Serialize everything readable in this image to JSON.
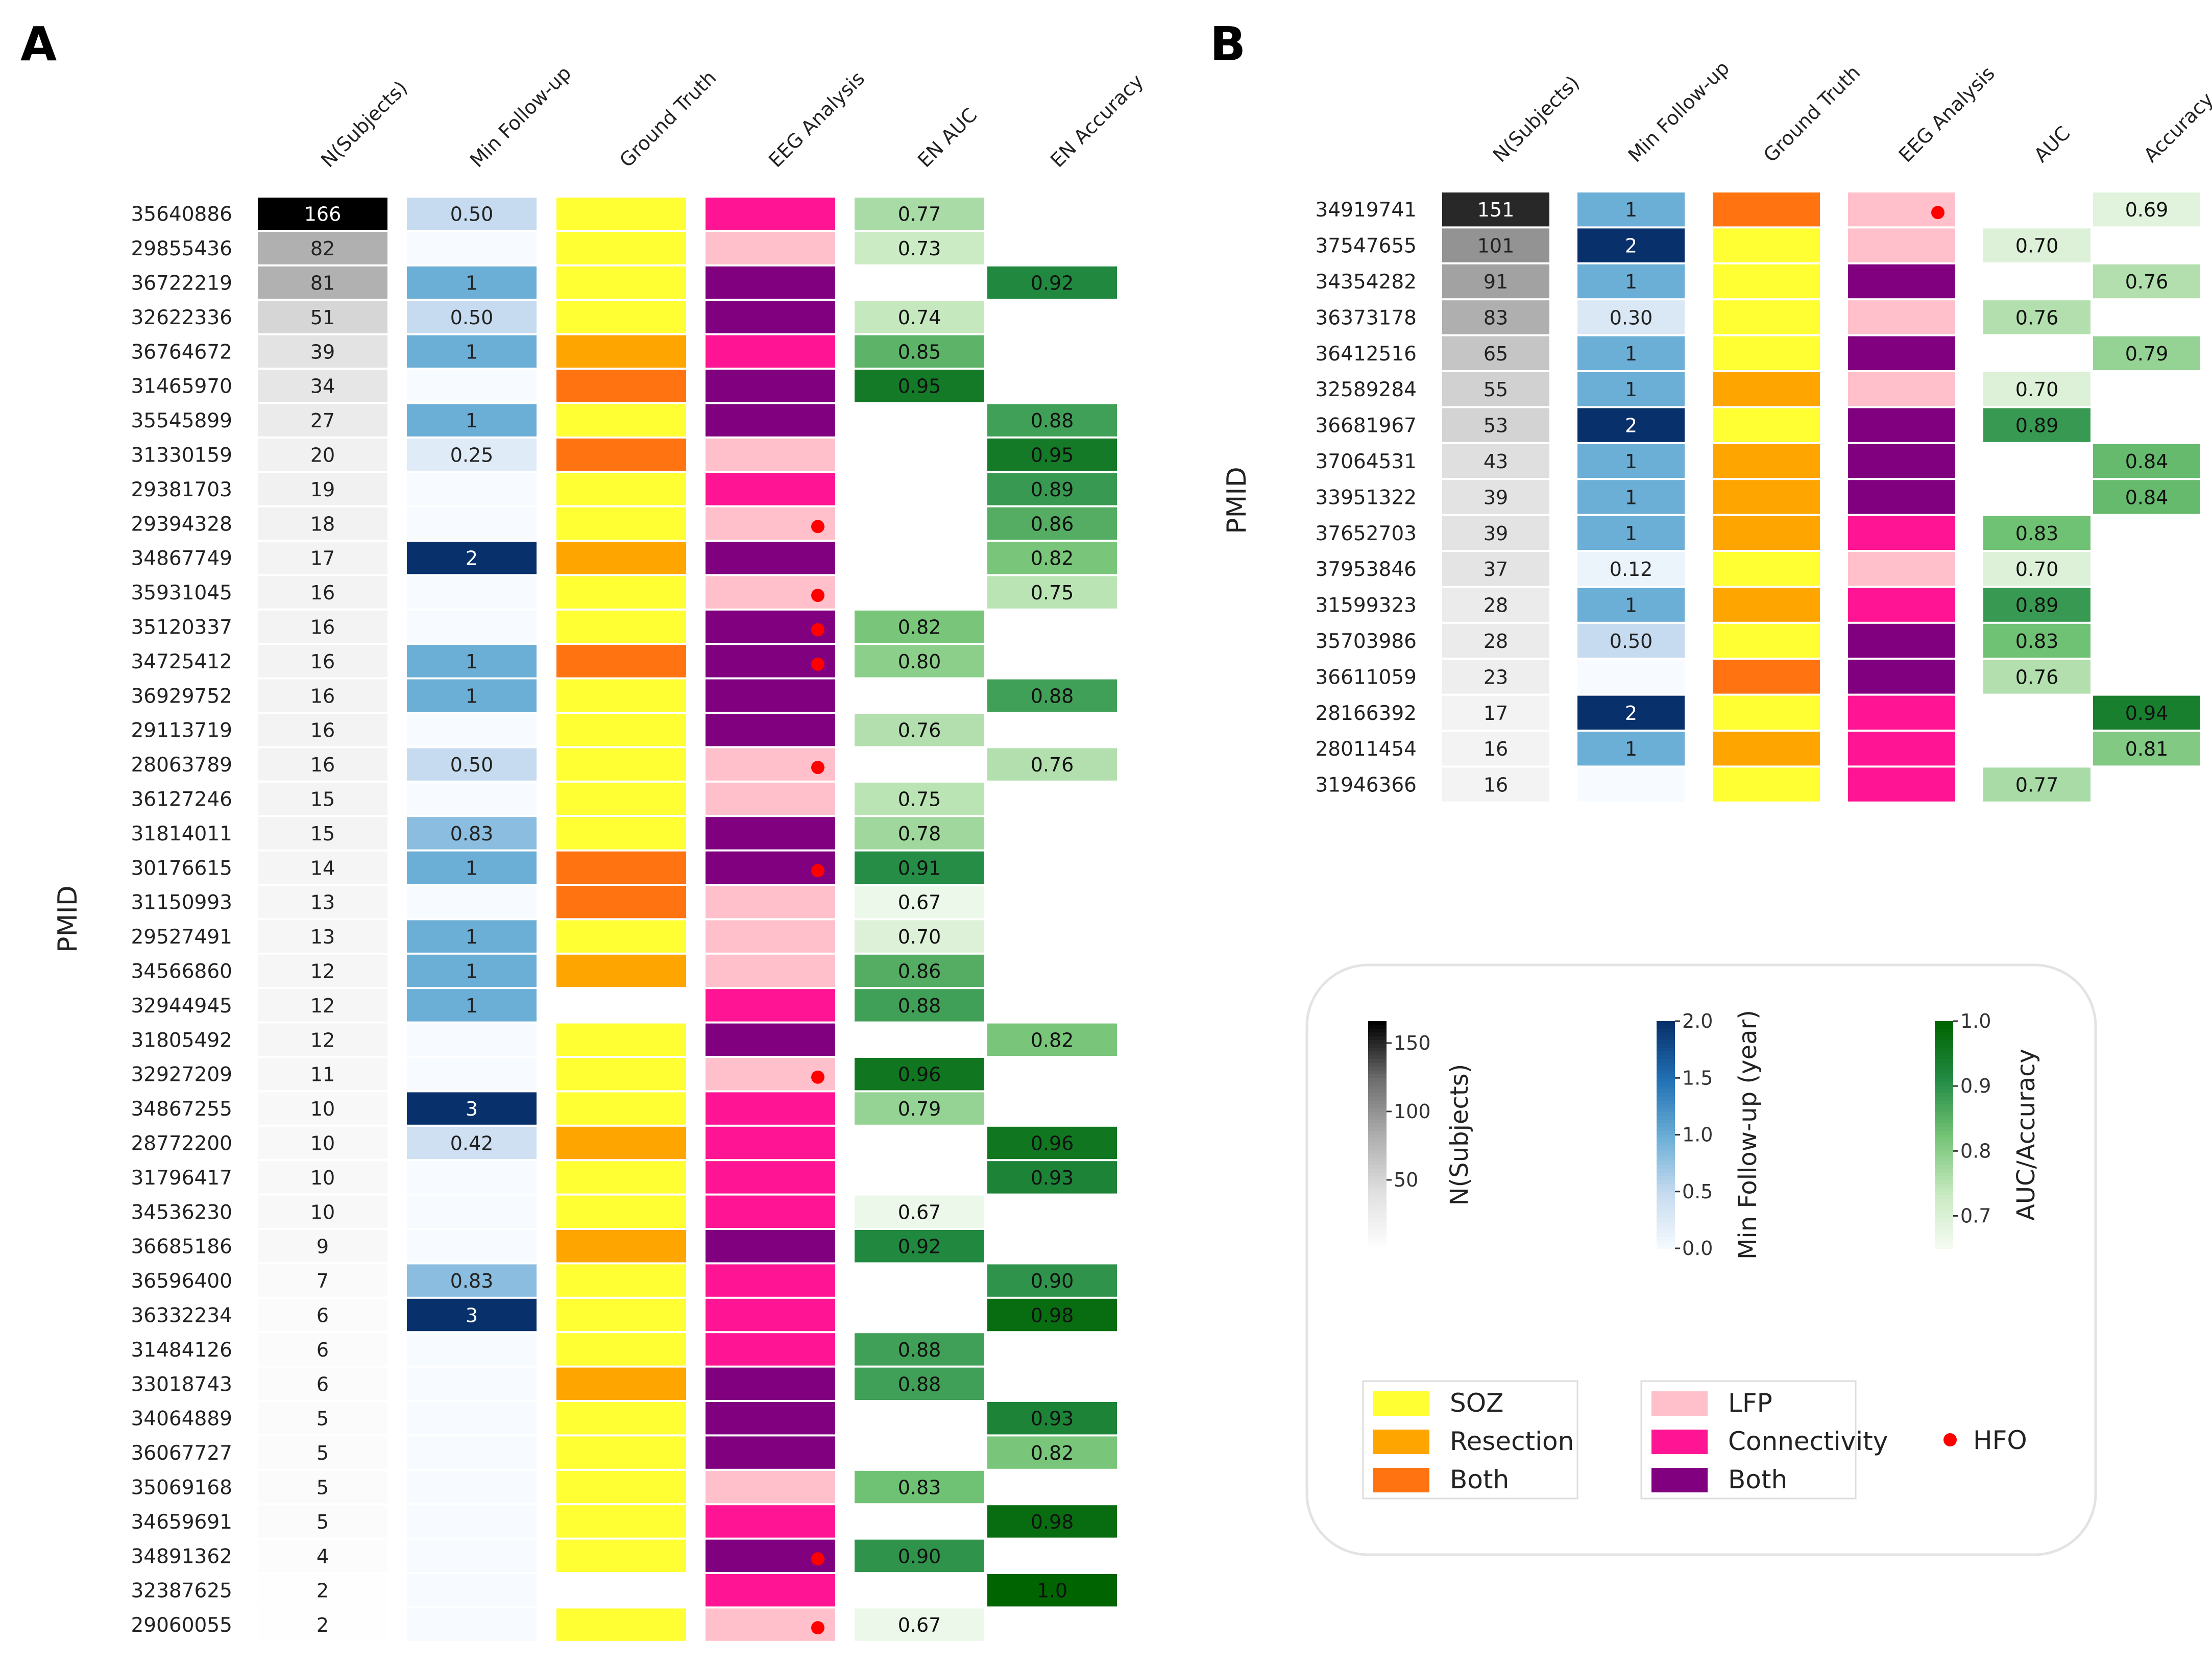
{
  "colors": {
    "soz": "#ffff33",
    "resection": "#ffa500",
    "gt_both": "#ff7410",
    "lfp": "#ffc0cb",
    "connectivity": "#ff1493",
    "eeg_both": "#800080",
    "hfo": "#ff0000"
  },
  "legend": {
    "gt": [
      {
        "key": "S",
        "label": "SOZ"
      },
      {
        "key": "R",
        "label": "Resection"
      },
      {
        "key": "B",
        "label": "Both"
      }
    ],
    "eeg": [
      {
        "key": "L",
        "label": "LFP"
      },
      {
        "key": "C",
        "label": "Connectivity"
      },
      {
        "key": "B",
        "label": "Both"
      }
    ],
    "hfo": "HFO"
  },
  "colorbars": [
    {
      "id": "n",
      "label": "N(Subjects)",
      "min": 0,
      "max": 166,
      "ticks": [
        50,
        100,
        150
      ],
      "tick_labels": [
        "50",
        "100",
        "150"
      ],
      "cmap": "gray"
    },
    {
      "id": "fu",
      "label": "Min Follow-up (year)",
      "min": 0,
      "max": 2.0,
      "ticks": [
        0,
        0.5,
        1.0,
        1.5,
        2.0
      ],
      "tick_labels": [
        "0.0",
        "0.5",
        "1.0",
        "1.5",
        "2.0"
      ],
      "cmap": "blue"
    },
    {
      "id": "auc",
      "label": "AUC/Accuracy",
      "min": 0.65,
      "max": 1.0,
      "ticks": [
        0.7,
        0.8,
        0.9,
        1.0
      ],
      "tick_labels": [
        "0.7",
        "0.8",
        "0.9",
        "1.0"
      ],
      "cmap": "green"
    }
  ],
  "chart_data": [
    {
      "type": "heatmap",
      "panel": "A",
      "ylabel": "PMID",
      "columns": [
        "N(Subjects)",
        "Min Follow-up",
        "Ground Truth",
        "EEG Analysis",
        "EN AUC",
        "EN Accuracy"
      ],
      "rows": [
        {
          "pmid": "35640886",
          "n": 166,
          "fu": 0.5,
          "fu_label": "0.50",
          "gt": "S",
          "eeg": "C",
          "hfo": false,
          "auc": 0.77,
          "auc_label": "0.77",
          "acc": null,
          "acc_label": null
        },
        {
          "pmid": "29855436",
          "n": 82,
          "fu": null,
          "fu_label": null,
          "gt": "S",
          "eeg": "L",
          "hfo": false,
          "auc": 0.73,
          "auc_label": "0.73",
          "acc": null,
          "acc_label": null
        },
        {
          "pmid": "36722219",
          "n": 81,
          "fu": 1,
          "fu_label": "1",
          "gt": "S",
          "eeg": "B",
          "hfo": false,
          "auc": null,
          "auc_label": null,
          "acc": 0.92,
          "acc_label": "0.92"
        },
        {
          "pmid": "32622336",
          "n": 51,
          "fu": 0.5,
          "fu_label": "0.50",
          "gt": "S",
          "eeg": "B",
          "hfo": false,
          "auc": 0.74,
          "auc_label": "0.74",
          "acc": null,
          "acc_label": null
        },
        {
          "pmid": "36764672",
          "n": 39,
          "fu": 1,
          "fu_label": "1",
          "gt": "R",
          "eeg": "C",
          "hfo": false,
          "auc": 0.85,
          "auc_label": "0.85",
          "acc": null,
          "acc_label": null
        },
        {
          "pmid": "31465970",
          "n": 34,
          "fu": null,
          "fu_label": null,
          "gt": "B",
          "eeg": "B",
          "hfo": false,
          "auc": 0.95,
          "auc_label": "0.95",
          "acc": null,
          "acc_label": null
        },
        {
          "pmid": "35545899",
          "n": 27,
          "fu": 1,
          "fu_label": "1",
          "gt": "S",
          "eeg": "B",
          "hfo": false,
          "auc": null,
          "auc_label": null,
          "acc": 0.88,
          "acc_label": "0.88"
        },
        {
          "pmid": "31330159",
          "n": 20,
          "fu": 0.25,
          "fu_label": "0.25",
          "gt": "B",
          "eeg": "L",
          "hfo": false,
          "auc": null,
          "auc_label": null,
          "acc": 0.95,
          "acc_label": "0.95"
        },
        {
          "pmid": "29381703",
          "n": 19,
          "fu": null,
          "fu_label": null,
          "gt": "S",
          "eeg": "C",
          "hfo": false,
          "auc": null,
          "auc_label": null,
          "acc": 0.89,
          "acc_label": "0.89"
        },
        {
          "pmid": "29394328",
          "n": 18,
          "fu": null,
          "fu_label": null,
          "gt": "S",
          "eeg": "L",
          "hfo": true,
          "auc": null,
          "auc_label": null,
          "acc": 0.86,
          "acc_label": "0.86"
        },
        {
          "pmid": "34867749",
          "n": 17,
          "fu": 2,
          "fu_label": "2",
          "gt": "R",
          "eeg": "B",
          "hfo": false,
          "auc": null,
          "auc_label": null,
          "acc": 0.82,
          "acc_label": "0.82"
        },
        {
          "pmid": "35931045",
          "n": 16,
          "fu": null,
          "fu_label": null,
          "gt": "S",
          "eeg": "L",
          "hfo": true,
          "auc": null,
          "auc_label": null,
          "acc": 0.75,
          "acc_label": "0.75"
        },
        {
          "pmid": "35120337",
          "n": 16,
          "fu": null,
          "fu_label": null,
          "gt": "S",
          "eeg": "B",
          "hfo": true,
          "auc": 0.82,
          "auc_label": "0.82",
          "acc": null,
          "acc_label": null
        },
        {
          "pmid": "34725412",
          "n": 16,
          "fu": 1,
          "fu_label": "1",
          "gt": "B",
          "eeg": "B",
          "hfo": true,
          "auc": 0.8,
          "auc_label": "0.80",
          "acc": null,
          "acc_label": null
        },
        {
          "pmid": "36929752",
          "n": 16,
          "fu": 1,
          "fu_label": "1",
          "gt": "S",
          "eeg": "B",
          "hfo": false,
          "auc": null,
          "auc_label": null,
          "acc": 0.88,
          "acc_label": "0.88"
        },
        {
          "pmid": "29113719",
          "n": 16,
          "fu": null,
          "fu_label": null,
          "gt": "S",
          "eeg": "B",
          "hfo": false,
          "auc": 0.76,
          "auc_label": "0.76",
          "acc": null,
          "acc_label": null
        },
        {
          "pmid": "28063789",
          "n": 16,
          "fu": 0.5,
          "fu_label": "0.50",
          "gt": "S",
          "eeg": "L",
          "hfo": true,
          "auc": null,
          "auc_label": null,
          "acc": 0.76,
          "acc_label": "0.76"
        },
        {
          "pmid": "36127246",
          "n": 15,
          "fu": null,
          "fu_label": null,
          "gt": "S",
          "eeg": "L",
          "hfo": false,
          "auc": 0.75,
          "auc_label": "0.75",
          "acc": null,
          "acc_label": null
        },
        {
          "pmid": "31814011",
          "n": 15,
          "fu": 0.83,
          "fu_label": "0.83",
          "gt": "S",
          "eeg": "B",
          "hfo": false,
          "auc": 0.78,
          "auc_label": "0.78",
          "acc": null,
          "acc_label": null
        },
        {
          "pmid": "30176615",
          "n": 14,
          "fu": 1,
          "fu_label": "1",
          "gt": "B",
          "eeg": "B",
          "hfo": true,
          "auc": 0.91,
          "auc_label": "0.91",
          "acc": null,
          "acc_label": null
        },
        {
          "pmid": "31150993",
          "n": 13,
          "fu": null,
          "fu_label": null,
          "gt": "B",
          "eeg": "L",
          "hfo": false,
          "auc": 0.67,
          "auc_label": "0.67",
          "acc": null,
          "acc_label": null
        },
        {
          "pmid": "29527491",
          "n": 13,
          "fu": 1,
          "fu_label": "1",
          "gt": "S",
          "eeg": "L",
          "hfo": false,
          "auc": 0.7,
          "auc_label": "0.70",
          "acc": null,
          "acc_label": null
        },
        {
          "pmid": "34566860",
          "n": 12,
          "fu": 1,
          "fu_label": "1",
          "gt": "R",
          "eeg": "L",
          "hfo": false,
          "auc": 0.86,
          "auc_label": "0.86",
          "acc": null,
          "acc_label": null
        },
        {
          "pmid": "32944945",
          "n": 12,
          "fu": 1,
          "fu_label": "1",
          "gt": null,
          "eeg": "C",
          "hfo": false,
          "auc": 0.88,
          "auc_label": "0.88",
          "acc": null,
          "acc_label": null
        },
        {
          "pmid": "31805492",
          "n": 12,
          "fu": null,
          "fu_label": null,
          "gt": "S",
          "eeg": "B",
          "hfo": false,
          "auc": null,
          "auc_label": null,
          "acc": 0.82,
          "acc_label": "0.82"
        },
        {
          "pmid": "32927209",
          "n": 11,
          "fu": null,
          "fu_label": null,
          "gt": "S",
          "eeg": "L",
          "hfo": true,
          "auc": 0.96,
          "auc_label": "0.96",
          "acc": null,
          "acc_label": null
        },
        {
          "pmid": "34867255",
          "n": 10,
          "fu": 3,
          "fu_label": "3",
          "gt": "S",
          "eeg": "C",
          "hfo": false,
          "auc": 0.79,
          "auc_label": "0.79",
          "acc": null,
          "acc_label": null
        },
        {
          "pmid": "28772200",
          "n": 10,
          "fu": 0.42,
          "fu_label": "0.42",
          "gt": "R",
          "eeg": "C",
          "hfo": false,
          "auc": null,
          "auc_label": null,
          "acc": 0.96,
          "acc_label": "0.96"
        },
        {
          "pmid": "31796417",
          "n": 10,
          "fu": null,
          "fu_label": null,
          "gt": "S",
          "eeg": "C",
          "hfo": false,
          "auc": null,
          "auc_label": null,
          "acc": 0.93,
          "acc_label": "0.93"
        },
        {
          "pmid": "34536230",
          "n": 10,
          "fu": null,
          "fu_label": null,
          "gt": "S",
          "eeg": "C",
          "hfo": false,
          "auc": 0.67,
          "auc_label": "0.67",
          "acc": null,
          "acc_label": null
        },
        {
          "pmid": "36685186",
          "n": 9,
          "fu": null,
          "fu_label": null,
          "gt": "R",
          "eeg": "B",
          "hfo": false,
          "auc": 0.92,
          "auc_label": "0.92",
          "acc": null,
          "acc_label": null
        },
        {
          "pmid": "36596400",
          "n": 7,
          "fu": 0.83,
          "fu_label": "0.83",
          "gt": "S",
          "eeg": "C",
          "hfo": false,
          "auc": null,
          "auc_label": null,
          "acc": 0.9,
          "acc_label": "0.90"
        },
        {
          "pmid": "36332234",
          "n": 6,
          "fu": 3,
          "fu_label": "3",
          "gt": "S",
          "eeg": "C",
          "hfo": false,
          "auc": null,
          "auc_label": null,
          "acc": 0.98,
          "acc_label": "0.98"
        },
        {
          "pmid": "31484126",
          "n": 6,
          "fu": null,
          "fu_label": null,
          "gt": "S",
          "eeg": "C",
          "hfo": false,
          "auc": 0.88,
          "auc_label": "0.88",
          "acc": null,
          "acc_label": null
        },
        {
          "pmid": "33018743",
          "n": 6,
          "fu": null,
          "fu_label": null,
          "gt": "R",
          "eeg": "B",
          "hfo": false,
          "auc": 0.88,
          "auc_label": "0.88",
          "acc": null,
          "acc_label": null
        },
        {
          "pmid": "34064889",
          "n": 5,
          "fu": null,
          "fu_label": null,
          "gt": "S",
          "eeg": "B",
          "hfo": false,
          "auc": null,
          "auc_label": null,
          "acc": 0.93,
          "acc_label": "0.93"
        },
        {
          "pmid": "36067727",
          "n": 5,
          "fu": null,
          "fu_label": null,
          "gt": "S",
          "eeg": "B",
          "hfo": false,
          "auc": null,
          "auc_label": null,
          "acc": 0.82,
          "acc_label": "0.82"
        },
        {
          "pmid": "35069168",
          "n": 5,
          "fu": null,
          "fu_label": null,
          "gt": "S",
          "eeg": "L",
          "hfo": false,
          "auc": 0.83,
          "auc_label": "0.83",
          "acc": null,
          "acc_label": null
        },
        {
          "pmid": "34659691",
          "n": 5,
          "fu": null,
          "fu_label": null,
          "gt": "S",
          "eeg": "C",
          "hfo": false,
          "auc": null,
          "auc_label": null,
          "acc": 0.98,
          "acc_label": "0.98"
        },
        {
          "pmid": "34891362",
          "n": 4,
          "fu": null,
          "fu_label": null,
          "gt": "S",
          "eeg": "B",
          "hfo": true,
          "auc": 0.9,
          "auc_label": "0.90",
          "acc": null,
          "acc_label": null
        },
        {
          "pmid": "32387625",
          "n": 2,
          "fu": null,
          "fu_label": null,
          "gt": null,
          "eeg": "C",
          "hfo": false,
          "auc": null,
          "auc_label": null,
          "acc": 1.0,
          "acc_label": "1.0"
        },
        {
          "pmid": "29060055",
          "n": 2,
          "fu": null,
          "fu_label": null,
          "gt": "S",
          "eeg": "L",
          "hfo": true,
          "auc": 0.67,
          "auc_label": "0.67",
          "acc": null,
          "acc_label": null
        }
      ]
    },
    {
      "type": "heatmap",
      "panel": "B",
      "ylabel": "PMID",
      "columns": [
        "N(Subjects)",
        "Min Follow-up",
        "Ground Truth",
        "EEG Analysis",
        "AUC",
        "Accuracy"
      ],
      "rows": [
        {
          "pmid": "34919741",
          "n": 151,
          "fu": 1,
          "fu_label": "1",
          "gt": "B",
          "eeg": "L",
          "hfo": true,
          "auc": null,
          "auc_label": null,
          "acc": 0.69,
          "acc_label": "0.69"
        },
        {
          "pmid": "37547655",
          "n": 101,
          "fu": 2,
          "fu_label": "2",
          "gt": "S",
          "eeg": "L",
          "hfo": false,
          "auc": 0.7,
          "auc_label": "0.70",
          "acc": null,
          "acc_label": null
        },
        {
          "pmid": "34354282",
          "n": 91,
          "fu": 1,
          "fu_label": "1",
          "gt": "S",
          "eeg": "B",
          "hfo": false,
          "auc": null,
          "auc_label": null,
          "acc": 0.76,
          "acc_label": "0.76"
        },
        {
          "pmid": "36373178",
          "n": 83,
          "fu": 0.3,
          "fu_label": "0.30",
          "gt": "S",
          "eeg": "L",
          "hfo": false,
          "auc": 0.76,
          "auc_label": "0.76",
          "acc": null,
          "acc_label": null
        },
        {
          "pmid": "36412516",
          "n": 65,
          "fu": 1,
          "fu_label": "1",
          "gt": "S",
          "eeg": "B",
          "hfo": false,
          "auc": null,
          "auc_label": null,
          "acc": 0.79,
          "acc_label": "0.79"
        },
        {
          "pmid": "32589284",
          "n": 55,
          "fu": 1,
          "fu_label": "1",
          "gt": "R",
          "eeg": "L",
          "hfo": false,
          "auc": 0.7,
          "auc_label": "0.70",
          "acc": null,
          "acc_label": null
        },
        {
          "pmid": "36681967",
          "n": 53,
          "fu": 2,
          "fu_label": "2",
          "gt": "S",
          "eeg": "B",
          "hfo": false,
          "auc": 0.89,
          "auc_label": "0.89",
          "acc": null,
          "acc_label": null
        },
        {
          "pmid": "37064531",
          "n": 43,
          "fu": 1,
          "fu_label": "1",
          "gt": "R",
          "eeg": "B",
          "hfo": false,
          "auc": null,
          "auc_label": null,
          "acc": 0.84,
          "acc_label": "0.84"
        },
        {
          "pmid": "33951322",
          "n": 39,
          "fu": 1,
          "fu_label": "1",
          "gt": "R",
          "eeg": "B",
          "hfo": false,
          "auc": null,
          "auc_label": null,
          "acc": 0.84,
          "acc_label": "0.84"
        },
        {
          "pmid": "37652703",
          "n": 39,
          "fu": 1,
          "fu_label": "1",
          "gt": "R",
          "eeg": "C",
          "hfo": false,
          "auc": 0.83,
          "auc_label": "0.83",
          "acc": null,
          "acc_label": null
        },
        {
          "pmid": "37953846",
          "n": 37,
          "fu": 0.12,
          "fu_label": "0.12",
          "gt": "S",
          "eeg": "L",
          "hfo": false,
          "auc": 0.7,
          "auc_label": "0.70",
          "acc": null,
          "acc_label": null
        },
        {
          "pmid": "31599323",
          "n": 28,
          "fu": 1,
          "fu_label": "1",
          "gt": "R",
          "eeg": "C",
          "hfo": false,
          "auc": 0.89,
          "auc_label": "0.89",
          "acc": null,
          "acc_label": null
        },
        {
          "pmid": "35703986",
          "n": 28,
          "fu": 0.5,
          "fu_label": "0.50",
          "gt": "S",
          "eeg": "B",
          "hfo": false,
          "auc": 0.83,
          "auc_label": "0.83",
          "acc": null,
          "acc_label": null
        },
        {
          "pmid": "36611059",
          "n": 23,
          "fu": null,
          "fu_label": null,
          "gt": "B",
          "eeg": "B",
          "hfo": false,
          "auc": 0.76,
          "auc_label": "0.76",
          "acc": null,
          "acc_label": null
        },
        {
          "pmid": "28166392",
          "n": 17,
          "fu": 2,
          "fu_label": "2",
          "gt": "S",
          "eeg": "C",
          "hfo": false,
          "auc": null,
          "auc_label": null,
          "acc": 0.94,
          "acc_label": "0.94"
        },
        {
          "pmid": "28011454",
          "n": 16,
          "fu": 1,
          "fu_label": "1",
          "gt": "R",
          "eeg": "C",
          "hfo": false,
          "auc": null,
          "auc_label": null,
          "acc": 0.81,
          "acc_label": "0.81"
        },
        {
          "pmid": "31946366",
          "n": 16,
          "fu": null,
          "fu_label": null,
          "gt": "S",
          "eeg": "C",
          "hfo": false,
          "auc": 0.77,
          "auc_label": "0.77",
          "acc": null,
          "acc_label": null
        }
      ]
    }
  ]
}
